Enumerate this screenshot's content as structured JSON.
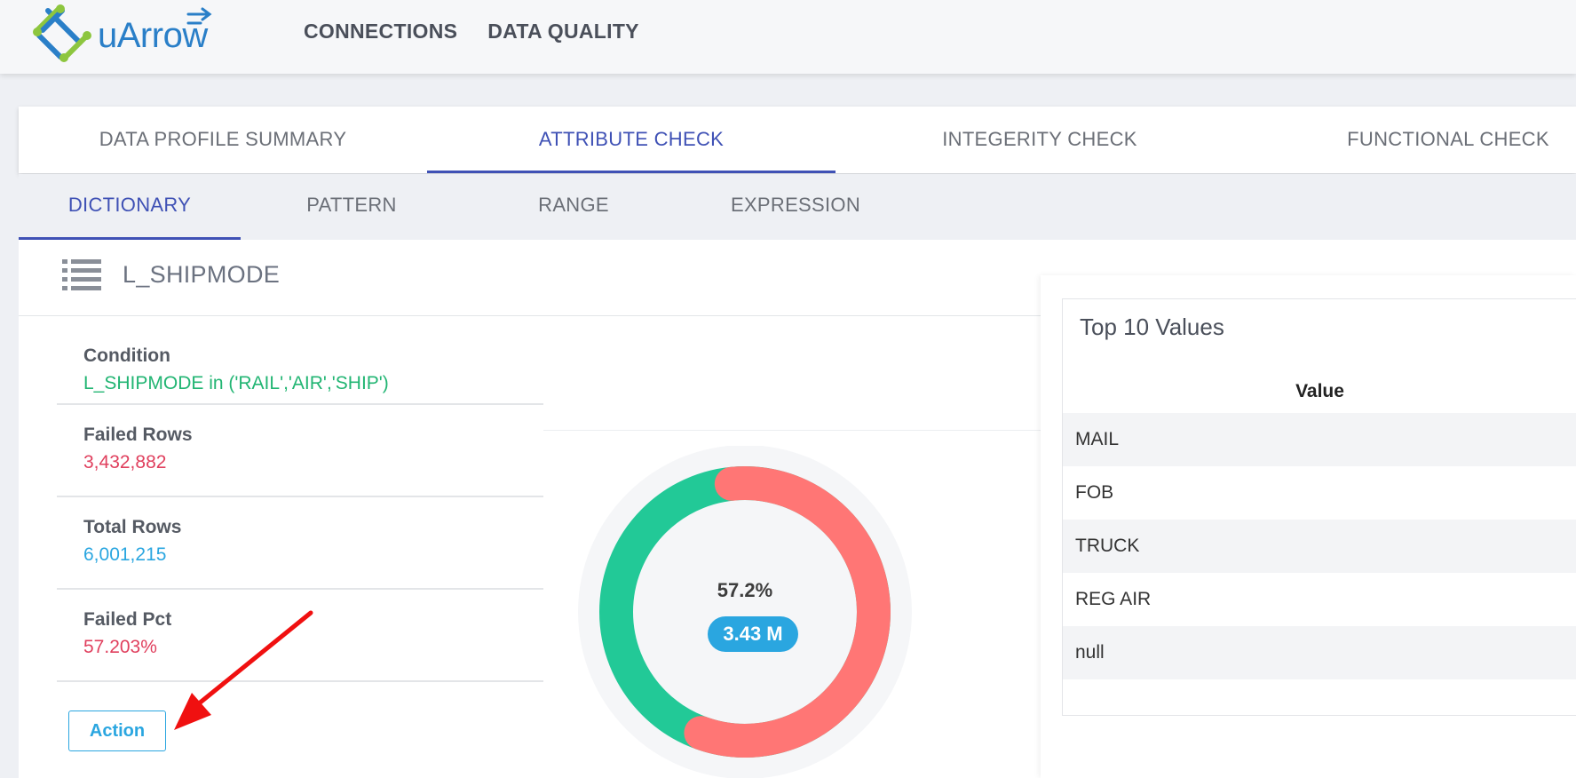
{
  "app": {
    "logo_text": "uArrow"
  },
  "topnav": {
    "items": [
      {
        "label": "CONNECTIONS"
      },
      {
        "label": "DATA QUALITY"
      }
    ]
  },
  "main_tabs": [
    {
      "label": "DATA PROFILE SUMMARY",
      "active": false
    },
    {
      "label": "ATTRIBUTE CHECK",
      "active": true
    },
    {
      "label": "INTEGERITY CHECK",
      "active": false
    },
    {
      "label": "FUNCTIONAL CHECK",
      "active": false
    }
  ],
  "sub_tabs": [
    {
      "label": "DICTIONARY",
      "active": true
    },
    {
      "label": "PATTERN",
      "active": false
    },
    {
      "label": "RANGE",
      "active": false
    },
    {
      "label": "EXPRESSION",
      "active": false
    }
  ],
  "panel": {
    "icon": "list-icon",
    "attribute": "L_SHIPMODE",
    "info": {
      "condition_label": "Condition",
      "condition_value": "L_SHIPMODE in ('RAIL','AIR','SHIP')",
      "failed_rows_label": "Failed Rows",
      "failed_rows_value": "3,432,882",
      "total_rows_label": "Total Rows",
      "total_rows_value": "6,001,215",
      "failed_pct_label": "Failed Pct",
      "failed_pct_value": "57.203%"
    },
    "action_label": "Action",
    "donut": {
      "failed_fraction": 0.572,
      "center_pct": "57.2%",
      "center_badge": "3.43 M",
      "failed_color": "#ff7675",
      "passed_color": "#22c997"
    },
    "top_values": {
      "title": "Top 10 Values",
      "column_header": "Value",
      "rows": [
        "MAIL",
        "FOB",
        "TRUCK",
        "REG AIR",
        "null"
      ]
    }
  },
  "colors": {
    "accent": "#3f51b5",
    "green": "#22b573",
    "red": "#e0405e",
    "blue": "#2aa6e0",
    "annotation_arrow": "#f01010"
  }
}
